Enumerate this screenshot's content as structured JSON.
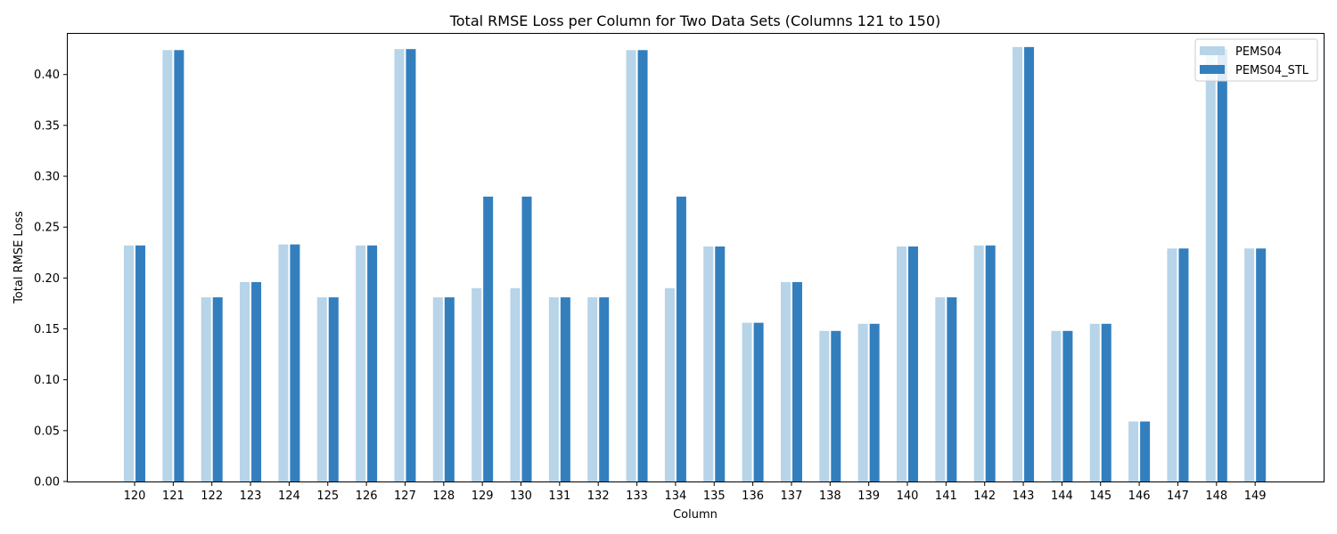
{
  "chart_data": {
    "type": "bar",
    "title": "Total RMSE Loss per Column for Two Data Sets (Columns 121 to 150)",
    "xlabel": "Column",
    "ylabel": "Total RMSE Loss",
    "categories": [
      "120",
      "121",
      "122",
      "123",
      "124",
      "125",
      "126",
      "127",
      "128",
      "129",
      "130",
      "131",
      "132",
      "133",
      "134",
      "135",
      "136",
      "137",
      "138",
      "139",
      "140",
      "141",
      "142",
      "143",
      "144",
      "145",
      "146",
      "147",
      "148",
      "149"
    ],
    "ylim": [
      0,
      0.44
    ],
    "yticks": [
      "0.00",
      "0.05",
      "0.10",
      "0.15",
      "0.20",
      "0.25",
      "0.30",
      "0.35",
      "0.40"
    ],
    "grid": false,
    "legend_position": "top-right",
    "series": [
      {
        "name": "PEMS04",
        "color": "#b7d4e8",
        "values": [
          0.232,
          0.424,
          0.181,
          0.196,
          0.233,
          0.181,
          0.232,
          0.425,
          0.181,
          0.19,
          0.19,
          0.181,
          0.181,
          0.424,
          0.19,
          0.231,
          0.156,
          0.196,
          0.148,
          0.155,
          0.231,
          0.181,
          0.232,
          0.427,
          0.148,
          0.155,
          0.059,
          0.229,
          0.425,
          0.229
        ]
      },
      {
        "name": "PEMS04_STL",
        "color": "#337fbe",
        "values": [
          0.232,
          0.424,
          0.181,
          0.196,
          0.233,
          0.181,
          0.232,
          0.425,
          0.181,
          0.28,
          0.28,
          0.181,
          0.181,
          0.424,
          0.28,
          0.231,
          0.156,
          0.196,
          0.148,
          0.155,
          0.231,
          0.181,
          0.232,
          0.427,
          0.148,
          0.155,
          0.059,
          0.229,
          0.425,
          0.229
        ]
      }
    ]
  }
}
